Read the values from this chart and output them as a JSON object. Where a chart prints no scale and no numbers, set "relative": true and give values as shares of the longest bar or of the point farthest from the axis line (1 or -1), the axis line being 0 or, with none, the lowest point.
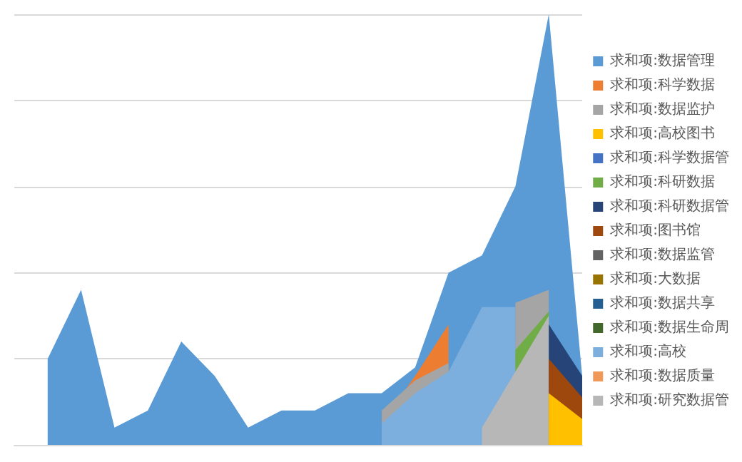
{
  "chart_data": {
    "type": "area",
    "relative": true,
    "grid": "y",
    "legend": "right",
    "marker": "none",
    "categories": [
      null,
      null,
      null,
      null,
      null,
      null,
      null,
      null,
      null,
      null,
      null,
      null,
      null,
      null,
      null,
      null,
      null,
      null
    ],
    "series": [
      {
        "name": "求和项:数据管理",
        "color": "#5b9bd5",
        "values": [
          null,
          0.2,
          0.36,
          0.04,
          0.08,
          0.24,
          0.16,
          0.04,
          0.08,
          0.08,
          0.12,
          0.12,
          0.18,
          0.4,
          0.44,
          0.6,
          1.0,
          0.16
        ]
      },
      {
        "name": "求和项:科学数据",
        "color": "#ed7d31",
        "values": [
          null,
          null,
          null,
          null,
          null,
          null,
          null,
          null,
          null,
          null,
          null,
          0.05,
          0.16,
          0.28,
          null,
          null,
          null,
          null
        ]
      },
      {
        "name": "求和项:数据监护",
        "color": "#a5a5a5",
        "values": [
          null,
          null,
          null,
          null,
          null,
          null,
          null,
          null,
          null,
          null,
          null,
          0.08,
          0.15,
          0.19,
          null,
          0.33,
          0.36,
          null
        ]
      },
      {
        "name": "求和项:高校图书",
        "color": "#ffc000",
        "values": [
          null,
          null,
          null,
          null,
          null,
          null,
          null,
          null,
          null,
          null,
          null,
          null,
          null,
          null,
          null,
          null,
          0.12,
          0.06
        ]
      },
      {
        "name": "求和项:科学数据管",
        "color": "#4472c4",
        "values": [
          null,
          null,
          null,
          null,
          null,
          null,
          null,
          null,
          null,
          null,
          null,
          null,
          null,
          null,
          null,
          null,
          null,
          null
        ]
      },
      {
        "name": "求和项:科研数据",
        "color": "#70ad47",
        "values": [
          null,
          null,
          null,
          null,
          null,
          null,
          null,
          null,
          null,
          null,
          null,
          null,
          null,
          null,
          null,
          0.22,
          0.31,
          null
        ]
      },
      {
        "name": "求和项:科研数据管",
        "color": "#264478",
        "values": [
          null,
          null,
          null,
          null,
          null,
          null,
          null,
          null,
          null,
          null,
          null,
          null,
          null,
          null,
          null,
          null,
          0.28,
          0.16
        ]
      },
      {
        "name": "求和项:图书馆",
        "color": "#9e480e",
        "values": [
          null,
          null,
          null,
          null,
          null,
          null,
          null,
          null,
          null,
          null,
          null,
          null,
          null,
          null,
          null,
          null,
          0.2,
          0.11
        ]
      },
      {
        "name": "求和项:数据监管",
        "color": "#636363",
        "values": [
          null,
          null,
          null,
          null,
          null,
          null,
          null,
          null,
          null,
          null,
          null,
          null,
          null,
          null,
          null,
          null,
          null,
          null
        ]
      },
      {
        "name": "求和项:大数据",
        "color": "#997300",
        "values": [
          null,
          null,
          null,
          null,
          null,
          null,
          null,
          null,
          null,
          null,
          null,
          null,
          null,
          null,
          null,
          null,
          null,
          null
        ]
      },
      {
        "name": "求和项:数据共享",
        "color": "#255e91",
        "values": [
          null,
          null,
          null,
          null,
          null,
          null,
          null,
          null,
          null,
          null,
          null,
          null,
          null,
          null,
          null,
          null,
          null,
          null
        ]
      },
      {
        "name": "求和项:数据生命周",
        "color": "#43682b",
        "values": [
          null,
          null,
          null,
          null,
          null,
          null,
          null,
          null,
          null,
          null,
          null,
          null,
          null,
          null,
          null,
          null,
          null,
          null
        ]
      },
      {
        "name": "求和项:高校",
        "color": "#7cafdd",
        "values": [
          null,
          null,
          null,
          null,
          null,
          null,
          null,
          null,
          null,
          null,
          null,
          0.05,
          0.12,
          0.17,
          0.32,
          0.32,
          null,
          null
        ]
      },
      {
        "name": "求和项:数据质量",
        "color": "#f1975a",
        "values": [
          null,
          null,
          null,
          null,
          null,
          null,
          null,
          null,
          null,
          null,
          null,
          null,
          null,
          null,
          null,
          null,
          null,
          null
        ]
      },
      {
        "name": "求和项:研究数据管",
        "color": "#b7b7b7",
        "values": [
          null,
          null,
          null,
          null,
          null,
          null,
          null,
          null,
          null,
          null,
          null,
          null,
          null,
          null,
          0.04,
          0.17,
          0.3,
          null
        ]
      }
    ]
  }
}
